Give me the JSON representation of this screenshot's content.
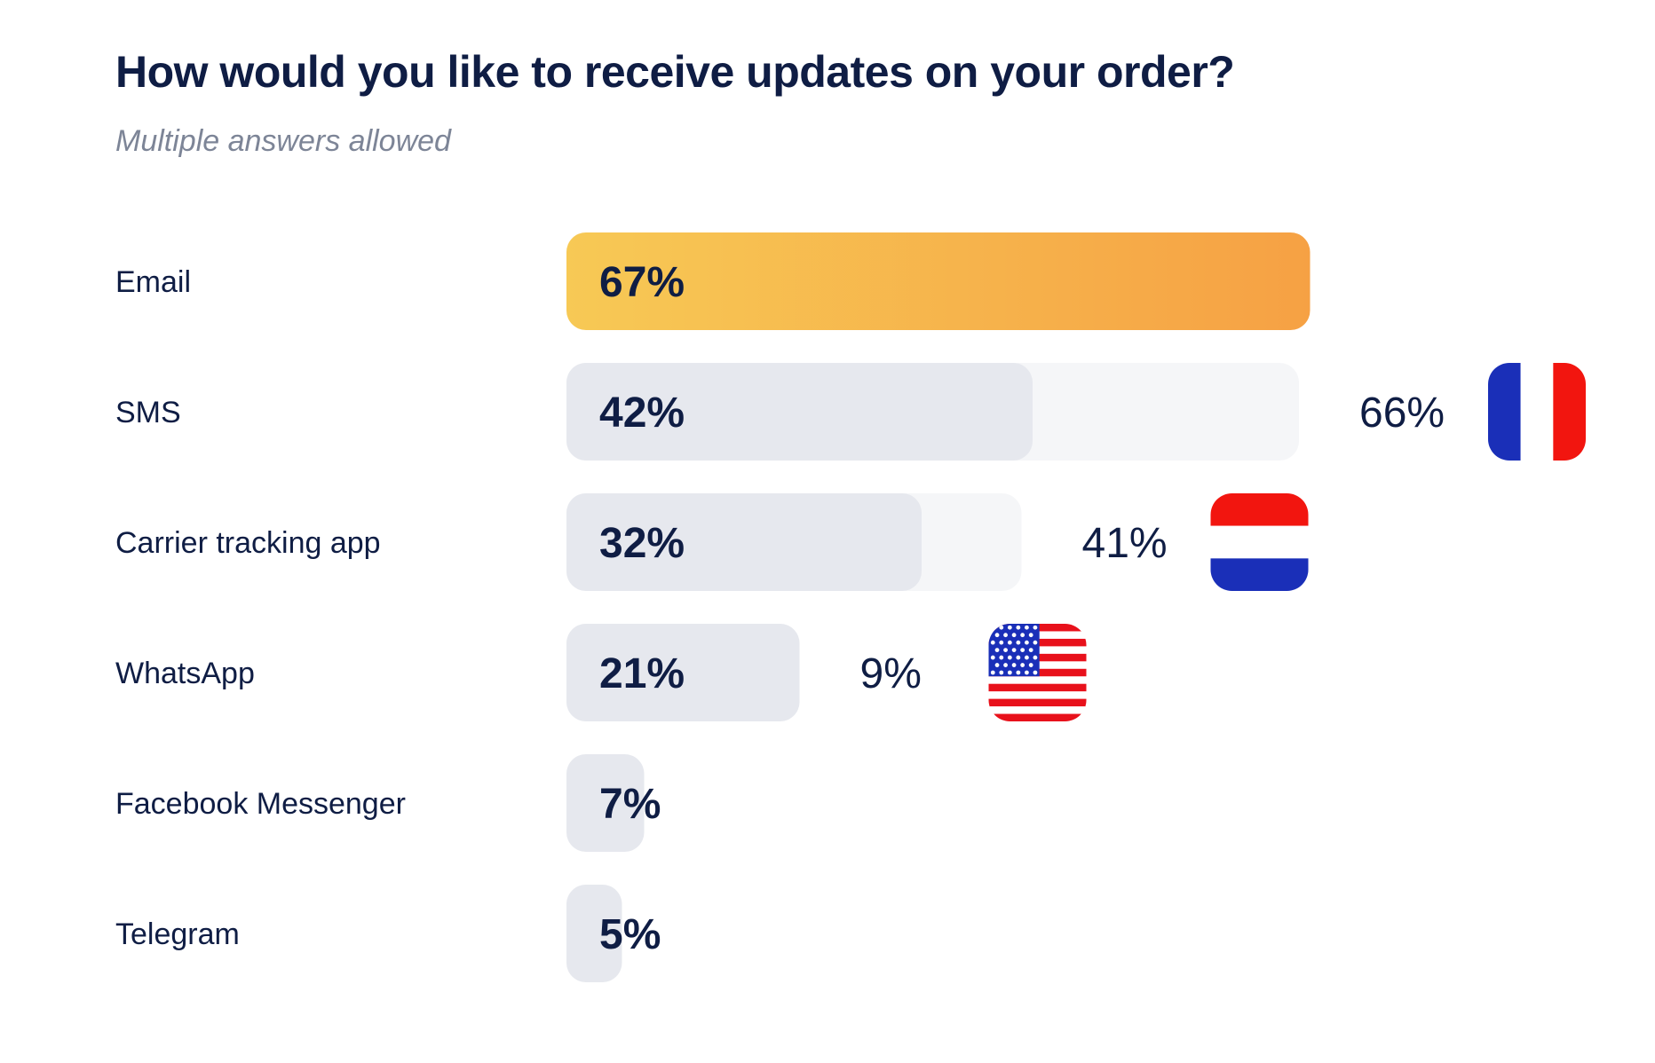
{
  "title": "How would you like to receive updates on your order?",
  "subtitle": "Multiple answers allowed",
  "colors": {
    "text": "#0f1d44",
    "bar": "#e6e8ee",
    "bar_light": "#f5f6f8",
    "highlight_start": "#f7c955",
    "highlight_end": "#f6a144"
  },
  "chart_data": {
    "type": "bar",
    "orientation": "horizontal",
    "xlim": [
      0,
      100
    ],
    "categories": [
      "Email",
      "SMS",
      "Carrier tracking app",
      "WhatsApp",
      "Facebook Messenger",
      "Telegram"
    ],
    "series": [
      {
        "values": [
          67,
          42,
          32,
          21,
          7,
          5
        ],
        "labels": [
          "67%",
          "42%",
          "32%",
          "21%",
          "7%",
          "5%"
        ]
      }
    ],
    "country_highlights": [
      {
        "category": "SMS",
        "value": 66,
        "label": "66%",
        "flag": "france-flag-icon"
      },
      {
        "category": "Carrier tracking app",
        "value": 41,
        "label": "41%",
        "flag": "netherlands-flag-icon"
      },
      {
        "category": "WhatsApp",
        "value": 9,
        "label": "9%",
        "flag": "usa-flag-icon"
      }
    ]
  }
}
